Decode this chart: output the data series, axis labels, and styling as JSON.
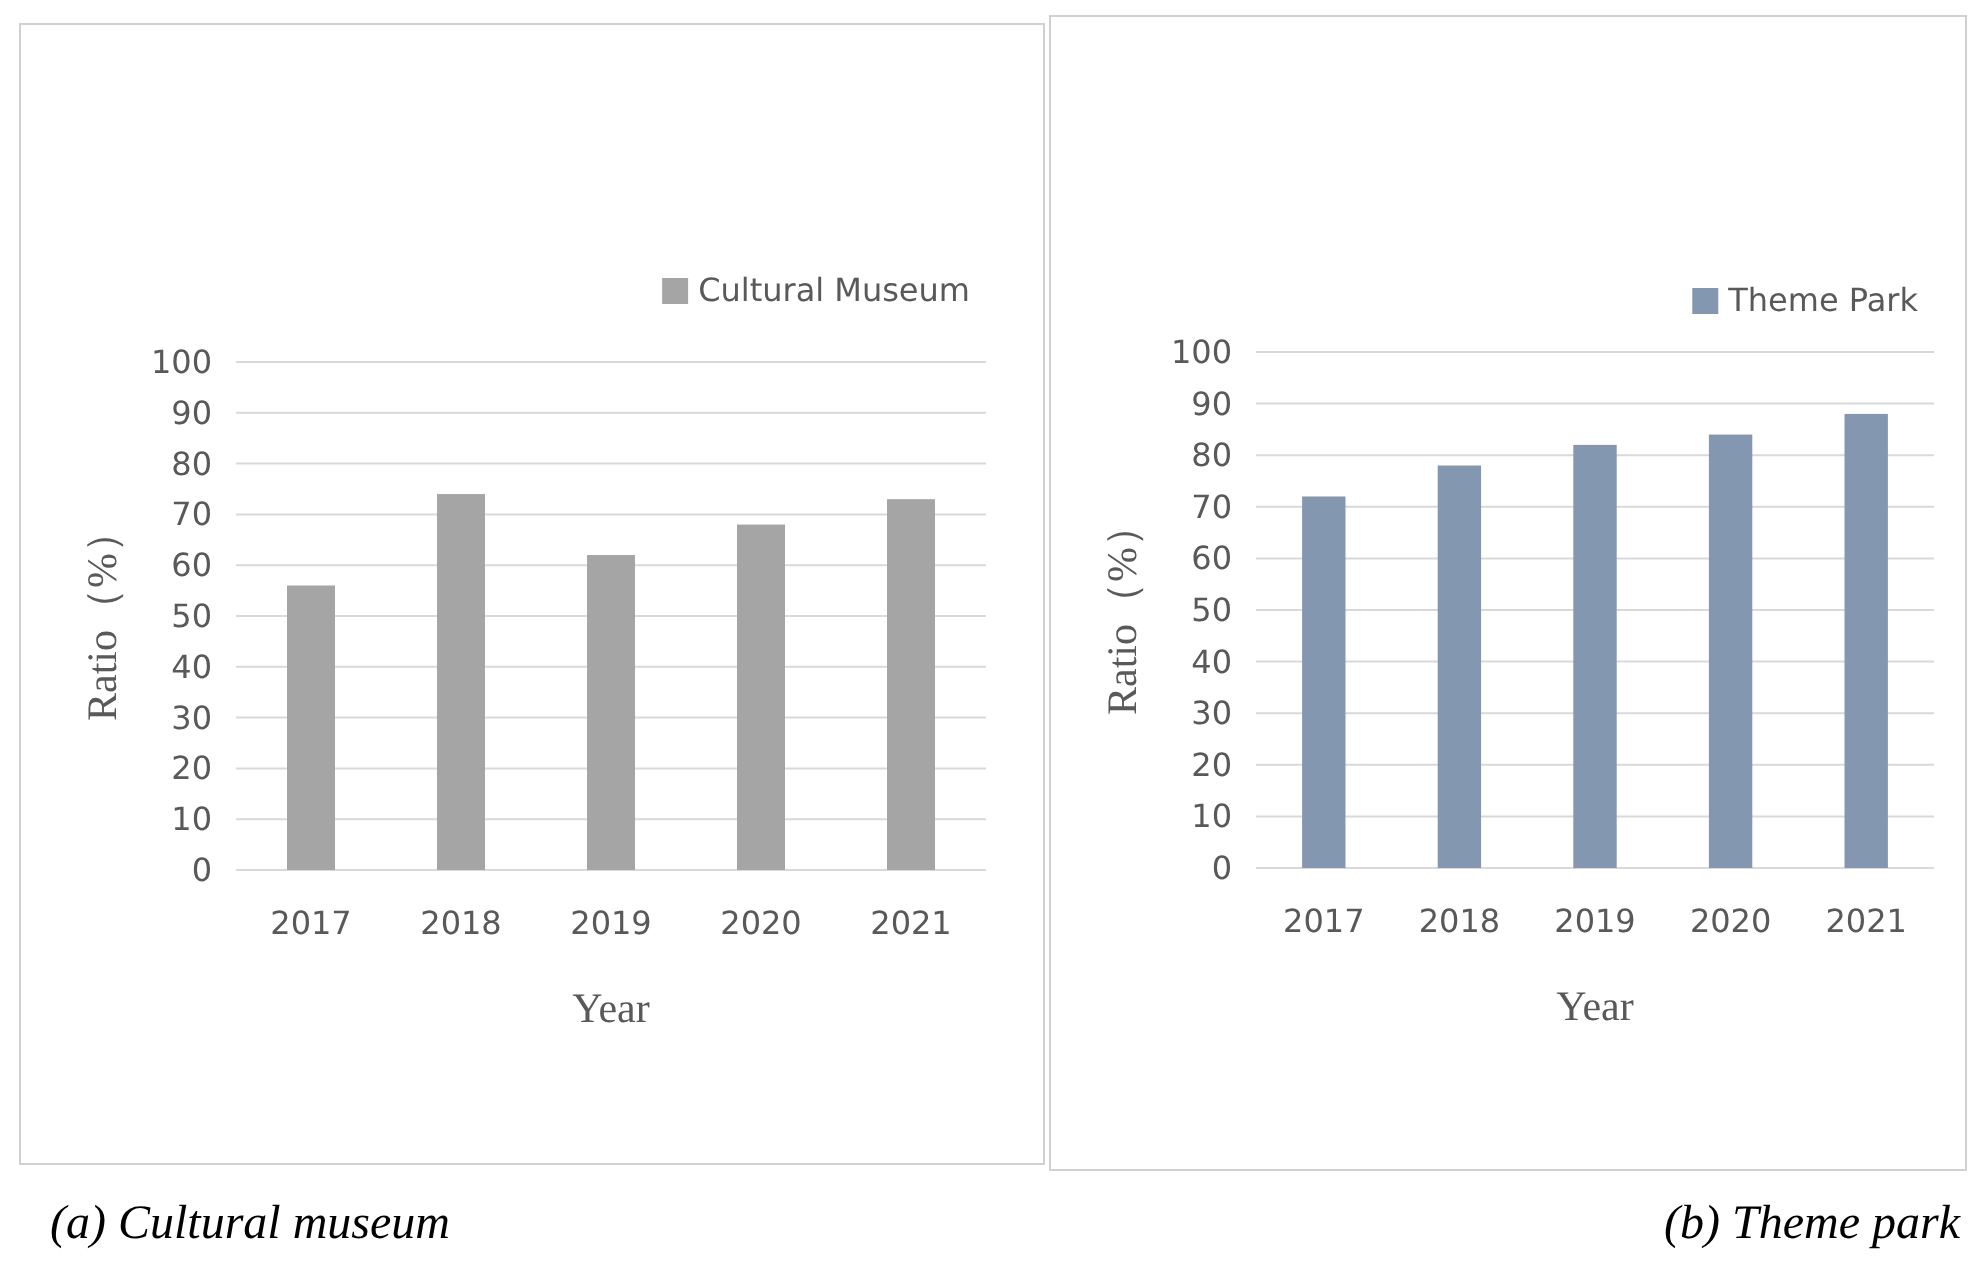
{
  "chart_data": [
    {
      "type": "bar",
      "categories": [
        "2017",
        "2018",
        "2019",
        "2020",
        "2021"
      ],
      "xlabel": "Year",
      "ylabel": "Ratio（%）",
      "ylim": [
        0,
        100
      ],
      "yticks": [
        0,
        10,
        20,
        30,
        40,
        50,
        60,
        70,
        80,
        90,
        100
      ],
      "grid": "y",
      "legend": "top right",
      "annotations": [
        "(a) Cultural museum"
      ],
      "series": [
        {
          "name": "Cultural Museum",
          "color": "#a5a5a5",
          "values": [
            56,
            74,
            62,
            68,
            73
          ]
        }
      ]
    },
    {
      "type": "bar",
      "categories": [
        "2017",
        "2018",
        "2019",
        "2020",
        "2021"
      ],
      "xlabel": "Year",
      "ylabel": "Ratio（%）",
      "ylim": [
        0,
        100
      ],
      "yticks": [
        0,
        10,
        20,
        30,
        40,
        50,
        60,
        70,
        80,
        90,
        100
      ],
      "grid": "y",
      "legend": "top right",
      "annotations": [
        "(b) Theme park"
      ],
      "series": [
        {
          "name": "Theme Park",
          "color": "#8497b0",
          "values": [
            72,
            78,
            82,
            84,
            88
          ]
        }
      ]
    }
  ]
}
